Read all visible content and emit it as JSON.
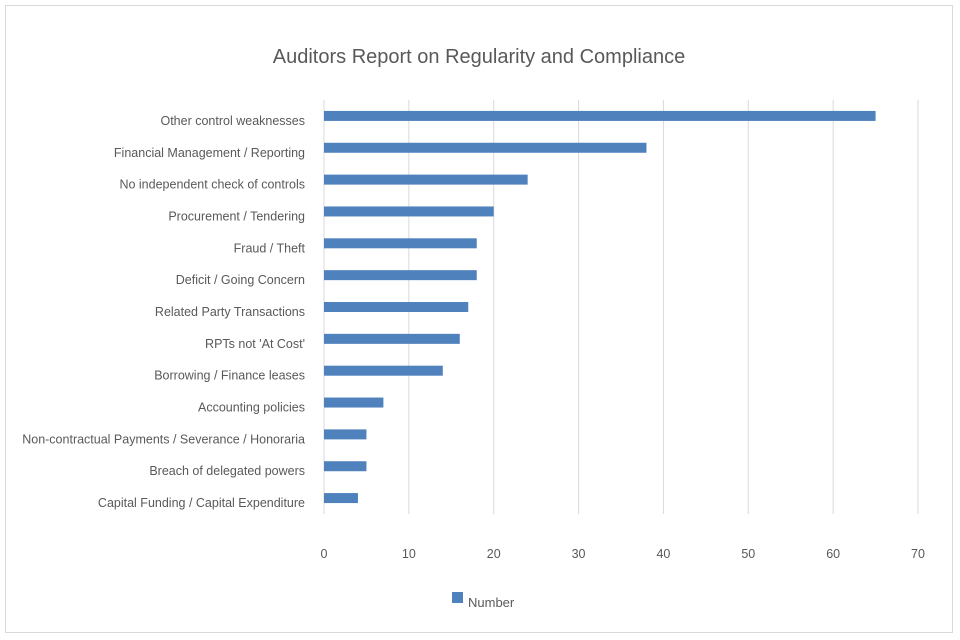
{
  "chart_data": {
    "type": "bar",
    "orientation": "horizontal",
    "title": "Auditors Report on Regularity and Compliance",
    "categories": [
      "Other control weaknesses",
      "Financial Management / Reporting",
      "No independent check of controls",
      "Procurement / Tendering",
      "Fraud / Theft",
      "Deficit / Going Concern",
      "Related Party Transactions",
      "RPTs not 'At Cost'",
      "Borrowing / Finance leases",
      "Accounting policies",
      "Non-contractual Payments / Severance / Honoraria",
      "Breach of delegated powers",
      "Capital Funding / Capital Expenditure"
    ],
    "series": [
      {
        "name": "Number",
        "values": [
          65,
          38,
          24,
          20,
          18,
          18,
          17,
          16,
          14,
          7,
          5,
          5,
          4
        ],
        "color": "#4f81bd"
      }
    ],
    "xlim": [
      0,
      70
    ],
    "xticks": [
      0,
      10,
      20,
      30,
      40,
      50,
      60,
      70
    ],
    "grid": "vertical",
    "legend_position": "bottom"
  }
}
